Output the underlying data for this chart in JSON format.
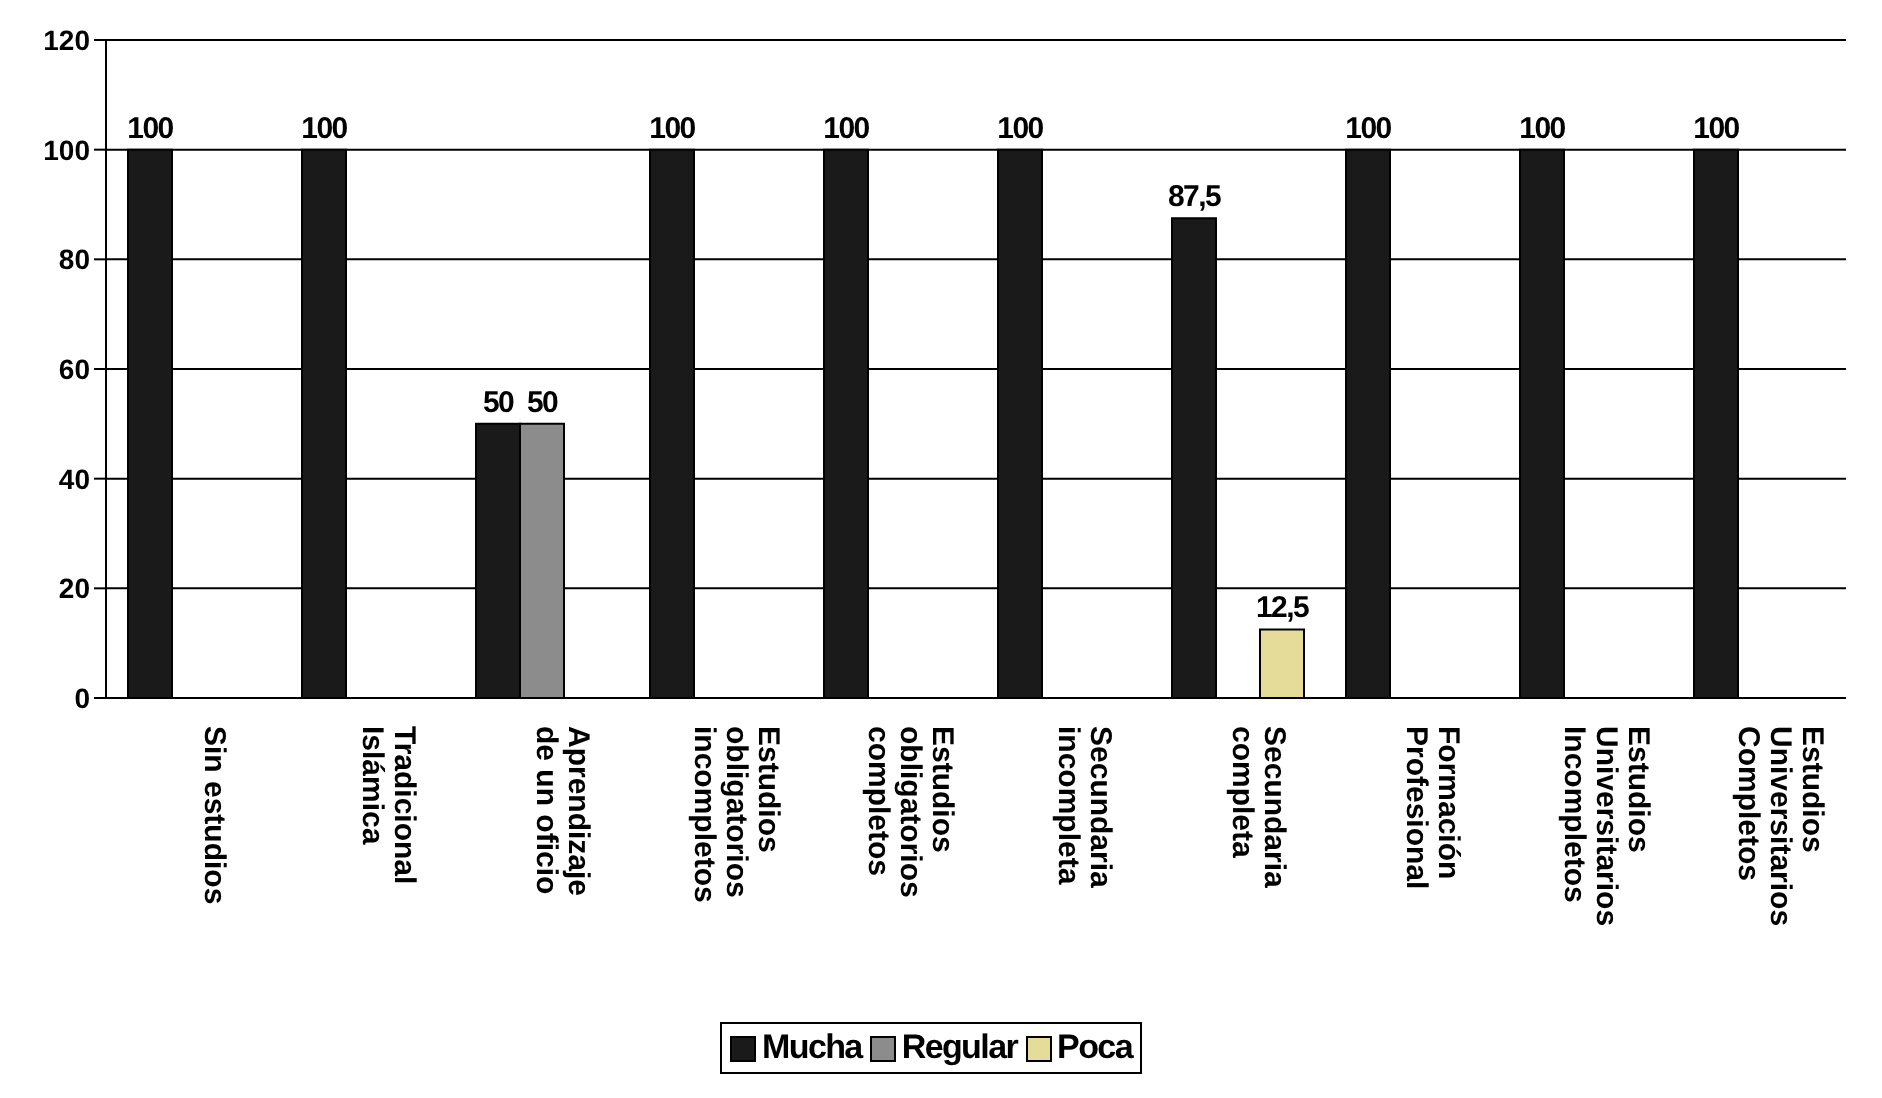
{
  "chart_data": {
    "type": "bar",
    "categories": [
      "Sin estudios",
      "Tradicional Islámica",
      "Aprendizaje de un oficio",
      "Estudios obligatorios incompletos",
      "Estudios obligatorios completos",
      "Secundaria incompleta",
      "Secundaria completa",
      "Formación Profesional",
      "Estudios Universitarios Incompletos",
      "Estudios Universitarios Completos"
    ],
    "series": [
      {
        "name": "Mucha",
        "color": "#1a1a1a",
        "values": [
          100,
          100,
          50,
          100,
          100,
          100,
          87.5,
          100,
          100,
          100
        ],
        "value_labels": [
          "100",
          "100",
          "50",
          "100",
          "100",
          "100",
          "87,5",
          "100",
          "100",
          "100"
        ]
      },
      {
        "name": "Regular",
        "color": "#8c8c8c",
        "values": [
          null,
          null,
          50,
          null,
          null,
          null,
          null,
          null,
          null,
          null
        ],
        "value_labels": [
          null,
          null,
          "50",
          null,
          null,
          null,
          null,
          null,
          null,
          null
        ]
      },
      {
        "name": "Poca",
        "color": "#e6dc9a",
        "values": [
          null,
          null,
          null,
          null,
          null,
          null,
          12.5,
          null,
          null,
          null
        ],
        "value_labels": [
          null,
          null,
          null,
          null,
          null,
          null,
          "12,5",
          null,
          null,
          null
        ]
      }
    ],
    "ylim": [
      0,
      120
    ],
    "yticks": [
      0,
      20,
      40,
      60,
      80,
      100,
      120
    ],
    "grid": "y",
    "legend": "bottom"
  }
}
